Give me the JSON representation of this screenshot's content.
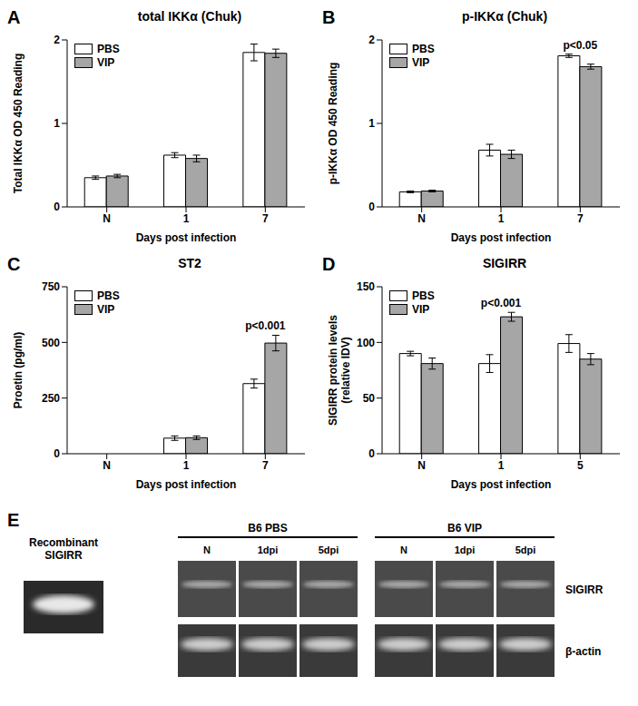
{
  "chart_data": [
    {
      "panel": "A",
      "type": "bar",
      "title": "total IKKα (Chuk)",
      "x_label": "Days post infection",
      "y_label": "Total IKKα OD 450 Reading",
      "categories": [
        "N",
        "1",
        "7"
      ],
      "series": [
        {
          "name": "PBS",
          "color": "#ffffff",
          "values": [
            0.35,
            0.62,
            1.85
          ],
          "errors": [
            0.02,
            0.03,
            0.1
          ]
        },
        {
          "name": "VIP",
          "color": "#a6a6a6",
          "values": [
            0.37,
            0.58,
            1.84
          ],
          "errors": [
            0.02,
            0.04,
            0.05
          ]
        }
      ],
      "ylim": [
        0,
        2
      ],
      "yticks": [
        0,
        1,
        2
      ],
      "grid": false,
      "legend": "upper left",
      "annotations": []
    },
    {
      "panel": "B",
      "type": "bar",
      "title": "p-IKKα (Chuk)",
      "x_label": "Days post infection",
      "y_label": "p-IKKα OD 450 Reading",
      "categories": [
        "N",
        "1",
        "7"
      ],
      "series": [
        {
          "name": "PBS",
          "color": "#ffffff",
          "values": [
            0.18,
            0.68,
            1.81
          ],
          "errors": [
            0.01,
            0.07,
            0.02
          ]
        },
        {
          "name": "VIP",
          "color": "#a6a6a6",
          "values": [
            0.19,
            0.63,
            1.68
          ],
          "errors": [
            0.01,
            0.05,
            0.03
          ]
        }
      ],
      "ylim": [
        0,
        2
      ],
      "yticks": [
        0,
        1,
        2
      ],
      "grid": false,
      "legend": "upper left",
      "annotations": [
        {
          "text": "p<0.05",
          "category": "7"
        }
      ]
    },
    {
      "panel": "C",
      "type": "bar",
      "title": "ST2",
      "x_label": "Days post infection",
      "y_label": "Proetin (pg/ml)",
      "categories": [
        "N",
        "1",
        "7"
      ],
      "series": [
        {
          "name": "PBS",
          "color": "#ffffff",
          "values": [
            0,
            70,
            315
          ],
          "errors": [
            0,
            10,
            20
          ]
        },
        {
          "name": "VIP",
          "color": "#a6a6a6",
          "values": [
            0,
            72,
            497
          ],
          "errors": [
            0,
            8,
            35
          ]
        }
      ],
      "ylim": [
        0,
        750
      ],
      "yticks": [
        0,
        250,
        500,
        750
      ],
      "grid": false,
      "legend": "upper left",
      "annotations": [
        {
          "text": "p<0.001",
          "category": "7"
        }
      ]
    },
    {
      "panel": "D",
      "type": "bar",
      "title": "SIGIRR",
      "x_label": "Days post infection",
      "y_label": "SIGIRR protein levels\n(relative IDV)",
      "categories": [
        "N",
        "1",
        "5"
      ],
      "series": [
        {
          "name": "PBS",
          "color": "#ffffff",
          "values": [
            90,
            81,
            99
          ],
          "errors": [
            2,
            8,
            8
          ]
        },
        {
          "name": "VIP",
          "color": "#a6a6a6",
          "values": [
            81,
            123,
            85
          ],
          "errors": [
            5,
            4,
            5
          ]
        }
      ],
      "ylim": [
        0,
        150
      ],
      "yticks": [
        0,
        50,
        100,
        150
      ],
      "grid": false,
      "legend": "upper left",
      "annotations": [
        {
          "text": "p<0.001",
          "category": "1"
        }
      ]
    }
  ],
  "blot": {
    "panel": "E",
    "recombinant_label": "Recombinant SIGIRR",
    "groups": [
      {
        "name": "B6 PBS",
        "lanes": [
          "N",
          "1dpi",
          "5dpi"
        ]
      },
      {
        "name": "B6 VIP",
        "lanes": [
          "N",
          "1dpi",
          "5dpi"
        ]
      }
    ],
    "rows": [
      "SIGIRR",
      "β-actin"
    ]
  }
}
